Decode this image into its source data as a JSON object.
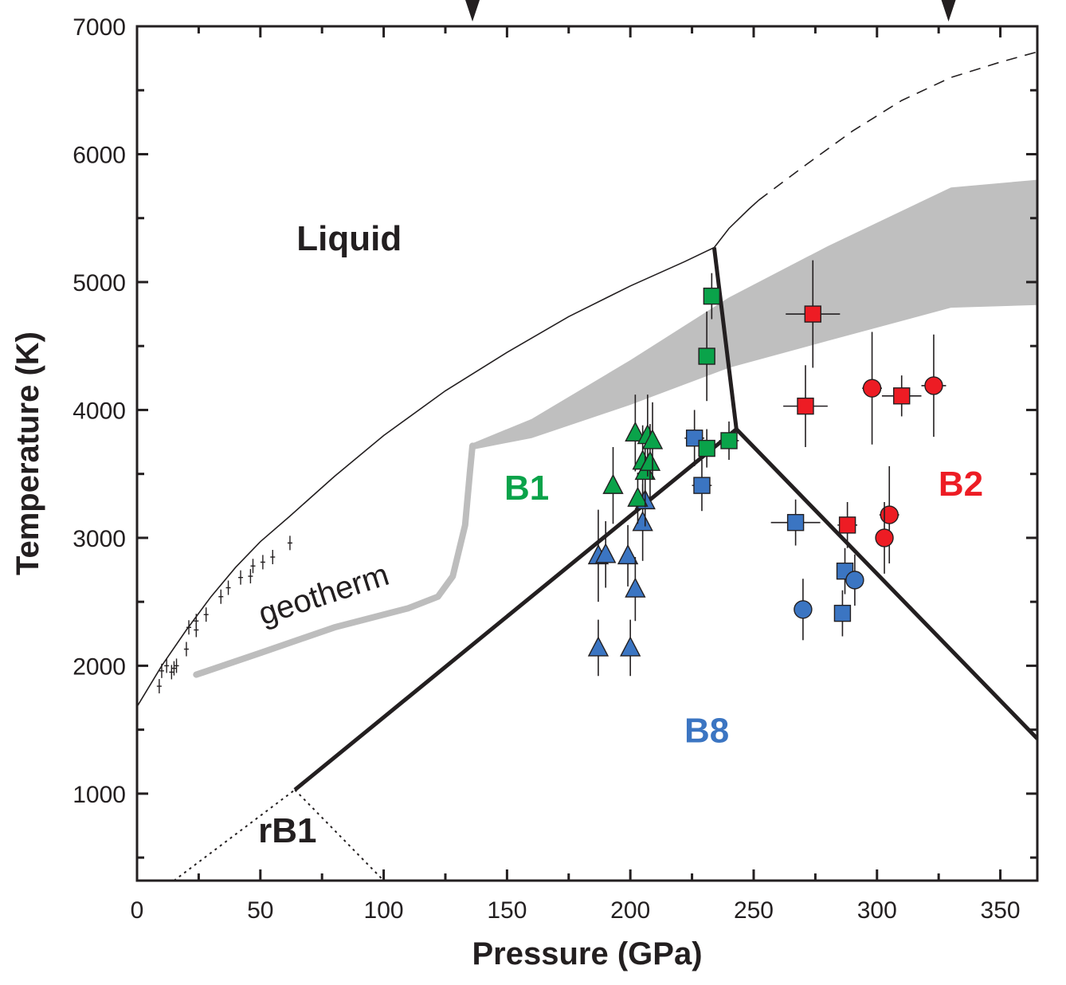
{
  "chart_data": {
    "type": "scatter",
    "title": "",
    "xlabel": "Pressure (GPa)",
    "ylabel": "Temperature (K)",
    "xlim": [
      0,
      365
    ],
    "ylim": [
      320,
      7000
    ],
    "x_ticks": [
      0,
      50,
      100,
      150,
      200,
      250,
      300,
      350
    ],
    "y_ticks": [
      1000,
      2000,
      3000,
      4000,
      5000,
      6000,
      7000
    ],
    "x_minor_step": 25,
    "y_minor_step": 500,
    "top_markers_x": [
      136,
      329
    ],
    "colors": {
      "B1": "#0aa34a",
      "B2": "#ed1c24",
      "B8": "#3b75c2",
      "axis": "#231f20",
      "band": "#bfbfbf",
      "geotherm": "#bdbdbd"
    },
    "region_labels": [
      {
        "text": "Liquid",
        "x": 86,
        "y": 5250,
        "color": "#231f20"
      },
      {
        "text": "B1",
        "x": 158,
        "y": 3300,
        "color": "#0aa34a"
      },
      {
        "text": "B2",
        "x": 334,
        "y": 3330,
        "color": "#ed1c24"
      },
      {
        "text": "B8",
        "x": 231,
        "y": 1400,
        "color": "#3b75c2"
      },
      {
        "text": "rB1",
        "x": 61,
        "y": 620,
        "color": "#231f20"
      },
      {
        "text": "geotherm",
        "x": 77,
        "y": 2480,
        "color": "#231f20",
        "rotate": -18
      }
    ],
    "lines": [
      {
        "name": "melting-curve",
        "style": "thin",
        "points": [
          [
            0,
            1680
          ],
          [
            10,
            2000
          ],
          [
            20,
            2280
          ],
          [
            30,
            2540
          ],
          [
            40,
            2770
          ],
          [
            50,
            2970
          ],
          [
            62,
            3170
          ],
          [
            80,
            3480
          ],
          [
            100,
            3800
          ],
          [
            125,
            4150
          ],
          [
            150,
            4450
          ],
          [
            175,
            4730
          ],
          [
            200,
            4970
          ],
          [
            222,
            5160
          ],
          [
            234,
            5270
          ]
        ]
      },
      {
        "name": "melting-curve-b2",
        "style": "thin",
        "points": [
          [
            234,
            5270
          ],
          [
            240,
            5420
          ],
          [
            248,
            5570
          ],
          [
            252,
            5640
          ]
        ]
      },
      {
        "name": "melting-curve-extrapolated",
        "style": "dashed",
        "points": [
          [
            252,
            5640
          ],
          [
            270,
            5900
          ],
          [
            290,
            6180
          ],
          [
            310,
            6420
          ],
          [
            330,
            6600
          ],
          [
            350,
            6720
          ],
          [
            365,
            6800
          ]
        ]
      },
      {
        "name": "b1-b8-boundary",
        "style": "thick",
        "points": [
          [
            64,
            1030
          ],
          [
            243,
            3850
          ]
        ]
      },
      {
        "name": "b1-b2-boundary",
        "style": "thick",
        "points": [
          [
            234,
            5270
          ],
          [
            243,
            3850
          ]
        ]
      },
      {
        "name": "b8-b2-boundary",
        "style": "thick",
        "points": [
          [
            243,
            3850
          ],
          [
            365,
            1430
          ]
        ]
      },
      {
        "name": "rb1-left-boundary",
        "style": "dotted",
        "points": [
          [
            15,
            320
          ],
          [
            64,
            1030
          ]
        ]
      },
      {
        "name": "rb1-right-boundary",
        "style": "dotted",
        "points": [
          [
            64,
            1030
          ],
          [
            100,
            320
          ]
        ]
      },
      {
        "name": "geotherm",
        "style": "geotherm",
        "points": [
          [
            24,
            1930
          ],
          [
            50,
            2100
          ],
          [
            80,
            2300
          ],
          [
            110,
            2450
          ],
          [
            122,
            2540
          ],
          [
            128,
            2700
          ],
          [
            133,
            3100
          ],
          [
            135,
            3520
          ],
          [
            136,
            3720
          ]
        ]
      }
    ],
    "band": {
      "name": "shaded-band",
      "upper": [
        [
          136,
          3740
        ],
        [
          160,
          3930
        ],
        [
          200,
          4390
        ],
        [
          240,
          4880
        ],
        [
          280,
          5280
        ],
        [
          330,
          5740
        ],
        [
          365,
          5800
        ]
      ],
      "lower": [
        [
          136,
          3690
        ],
        [
          160,
          3780
        ],
        [
          200,
          4040
        ],
        [
          240,
          4330
        ],
        [
          280,
          4540
        ],
        [
          330,
          4800
        ],
        [
          365,
          4820
        ]
      ]
    },
    "low_pressure_data": [
      [
        9,
        1840
      ],
      [
        10,
        1960
      ],
      [
        12,
        2000
      ],
      [
        14,
        1950
      ],
      [
        15,
        1980
      ],
      [
        16,
        2000
      ],
      [
        20,
        2130
      ],
      [
        21,
        2300
      ],
      [
        24,
        2280
      ],
      [
        24,
        2350
      ],
      [
        28,
        2400
      ],
      [
        34,
        2540
      ],
      [
        37,
        2610
      ],
      [
        42,
        2690
      ],
      [
        46,
        2700
      ],
      [
        47,
        2780
      ],
      [
        51,
        2810
      ],
      [
        55,
        2850
      ],
      [
        62,
        2960
      ]
    ],
    "series": [
      {
        "name": "B8",
        "color": "#3b75c2",
        "points": [
          {
            "x": 187,
            "y": 2860,
            "m": "triangle",
            "xerr": 0,
            "yerr": 360
          },
          {
            "x": 190,
            "y": 2870,
            "m": "triangle",
            "xerr": 0,
            "yerr": 260
          },
          {
            "x": 199,
            "y": 2860,
            "m": "triangle",
            "xerr": 0,
            "yerr": 240
          },
          {
            "x": 202,
            "y": 2600,
            "m": "triangle",
            "xerr": 0,
            "yerr": 250
          },
          {
            "x": 205,
            "y": 3120,
            "m": "triangle",
            "xerr": 0,
            "yerr": 300
          },
          {
            "x": 206,
            "y": 3290,
            "m": "triangle",
            "xerr": 0,
            "yerr": 200
          },
          {
            "x": 187,
            "y": 2140,
            "m": "triangle",
            "xerr": 0,
            "yerr": 220
          },
          {
            "x": 200,
            "y": 2140,
            "m": "triangle",
            "xerr": 0,
            "yerr": 220
          },
          {
            "x": 226,
            "y": 3780,
            "m": "square",
            "xerr": 4,
            "yerr": 220
          },
          {
            "x": 229,
            "y": 3410,
            "m": "square",
            "xerr": 4,
            "yerr": 200
          },
          {
            "x": 267,
            "y": 3120,
            "m": "square",
            "xerr": 10,
            "yerr": 180
          },
          {
            "x": 287,
            "y": 2740,
            "m": "square",
            "xerr": 2,
            "yerr": 180
          },
          {
            "x": 286,
            "y": 2410,
            "m": "square",
            "xerr": 2,
            "yerr": 180
          },
          {
            "x": 270,
            "y": 2440,
            "m": "circle",
            "xerr": 0,
            "yerr": 240
          },
          {
            "x": 291,
            "y": 2670,
            "m": "circle",
            "xerr": 0,
            "yerr": 200
          }
        ]
      },
      {
        "name": "B1",
        "color": "#0aa34a",
        "points": [
          {
            "x": 193,
            "y": 3410,
            "m": "triangle",
            "xerr": 0,
            "yerr": 300
          },
          {
            "x": 202,
            "y": 3820,
            "m": "triangle",
            "xerr": 0,
            "yerr": 300
          },
          {
            "x": 203,
            "y": 3310,
            "m": "triangle",
            "xerr": 0,
            "yerr": 200
          },
          {
            "x": 205,
            "y": 3600,
            "m": "triangle",
            "xerr": 0,
            "yerr": 280
          },
          {
            "x": 206,
            "y": 3520,
            "m": "triangle",
            "xerr": 0,
            "yerr": 280
          },
          {
            "x": 207,
            "y": 3800,
            "m": "triangle",
            "xerr": 0,
            "yerr": 320
          },
          {
            "x": 208,
            "y": 3590,
            "m": "triangle",
            "xerr": 0,
            "yerr": 300
          },
          {
            "x": 209,
            "y": 3760,
            "m": "triangle",
            "xerr": 0,
            "yerr": 300
          },
          {
            "x": 233,
            "y": 4890,
            "m": "square",
            "xerr": 2,
            "yerr": 180
          },
          {
            "x": 231,
            "y": 4420,
            "m": "square",
            "xerr": 2,
            "yerr": 350
          },
          {
            "x": 231,
            "y": 3700,
            "m": "square",
            "xerr": 2,
            "yerr": 150
          },
          {
            "x": 240,
            "y": 3760,
            "m": "square",
            "xerr": 4,
            "yerr": 150
          }
        ]
      },
      {
        "name": "B2",
        "color": "#ed1c24",
        "points": [
          {
            "x": 274,
            "y": 4750,
            "m": "square",
            "xerr": 11,
            "yerr": 420
          },
          {
            "x": 271,
            "y": 4030,
            "m": "square",
            "xerr": 9,
            "yerr": 320
          },
          {
            "x": 310,
            "y": 4110,
            "m": "square",
            "xerr": 8,
            "yerr": 160
          },
          {
            "x": 288,
            "y": 3100,
            "m": "square",
            "xerr": 4,
            "yerr": 180
          },
          {
            "x": 298,
            "y": 4170,
            "m": "circle",
            "xerr": 4,
            "yerr": 440
          },
          {
            "x": 323,
            "y": 4190,
            "m": "circle",
            "xerr": 5,
            "yerr": 400
          },
          {
            "x": 305,
            "y": 3180,
            "m": "circle",
            "xerr": 4,
            "yerr": 380
          },
          {
            "x": 303,
            "y": 3000,
            "m": "circle",
            "xerr": 2,
            "yerr": 280
          }
        ]
      }
    ]
  }
}
